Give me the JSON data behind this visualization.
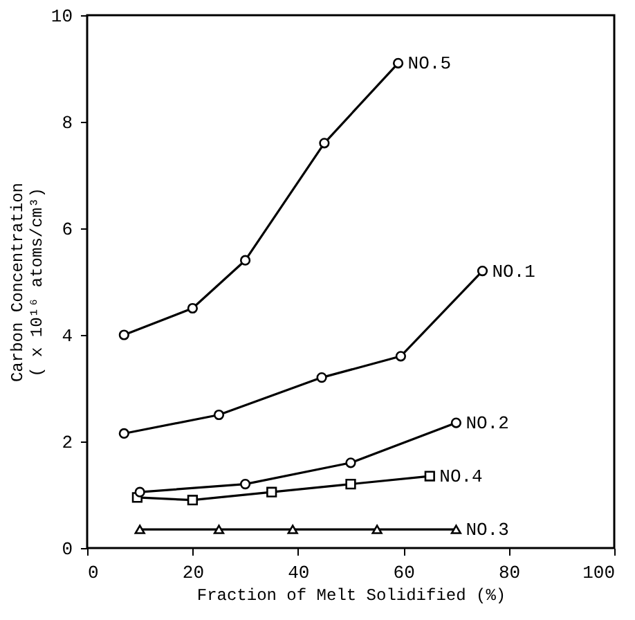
{
  "chart_data": {
    "type": "line",
    "xlabel": "Fraction of Melt Solidified (%)",
    "ylabel": "Carbon Concentration\n( x 10¹⁶ atoms/cm³)",
    "xlim": [
      0,
      100
    ],
    "xticks": [
      0,
      20,
      40,
      60,
      80,
      100
    ],
    "ylim": [
      0,
      10
    ],
    "yticks": [
      0,
      2,
      4,
      6,
      8,
      10
    ],
    "grid": false,
    "line_style": "solid",
    "series": [
      {
        "name": "NO.5",
        "color": "#000000",
        "marker": "circle",
        "x": [
          7,
          20,
          30,
          45,
          59
        ],
        "values": [
          4.0,
          4.5,
          5.4,
          7.6,
          9.1
        ]
      },
      {
        "name": "NO.1",
        "color": "#000000",
        "marker": "circle",
        "x": [
          7,
          25,
          44.5,
          59.5,
          75
        ],
        "values": [
          2.15,
          2.5,
          3.2,
          3.6,
          5.2
        ]
      },
      {
        "name": "NO.4",
        "color": "#000000",
        "marker": "square",
        "x": [
          9.5,
          20,
          35,
          50,
          65
        ],
        "values": [
          0.95,
          0.9,
          1.05,
          1.2,
          1.35
        ]
      },
      {
        "name": "NO.2",
        "color": "#000000",
        "marker": "circle",
        "x": [
          10,
          30,
          50,
          70
        ],
        "values": [
          1.05,
          1.2,
          1.6,
          2.35
        ]
      },
      {
        "name": "NO.3",
        "color": "#000000",
        "marker": "triangle",
        "x": [
          10,
          25,
          39,
          55,
          70
        ],
        "values": [
          0.35,
          0.35,
          0.35,
          0.35,
          0.35
        ]
      }
    ]
  }
}
